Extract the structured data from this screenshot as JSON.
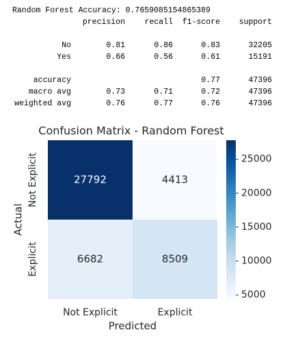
{
  "report": {
    "title": "Random Forest Accuracy: 0.7659085154865389",
    "headers": [
      "precision",
      "recall",
      "f1-score",
      "support"
    ],
    "rows": [
      {
        "label": "No",
        "values": [
          0.81,
          0.86,
          0.83,
          32205
        ]
      },
      {
        "label": "Yes",
        "values": [
          0.66,
          0.56,
          0.61,
          15191
        ]
      },
      {
        "label": "accuracy",
        "values": [
          null,
          null,
          0.77,
          47396
        ]
      },
      {
        "label": "macro avg",
        "values": [
          0.73,
          0.71,
          0.72,
          47396
        ]
      },
      {
        "label": "weighted avg",
        "values": [
          0.76,
          0.77,
          0.76,
          47396
        ]
      }
    ]
  },
  "chart_data": {
    "type": "heatmap",
    "title": "Confusion Matrix - Random Forest",
    "xlabel": "Predicted",
    "ylabel": "Actual",
    "x_categories": [
      "Not Explicit",
      "Explicit"
    ],
    "y_categories": [
      "Not Explicit",
      "Explicit"
    ],
    "values": [
      [
        27792,
        4413
      ],
      [
        6682,
        8509
      ]
    ],
    "cmap": "Blues",
    "clim": [
      4413,
      27792
    ],
    "cbar_ticks": [
      5000,
      10000,
      15000,
      20000,
      25000
    ]
  }
}
